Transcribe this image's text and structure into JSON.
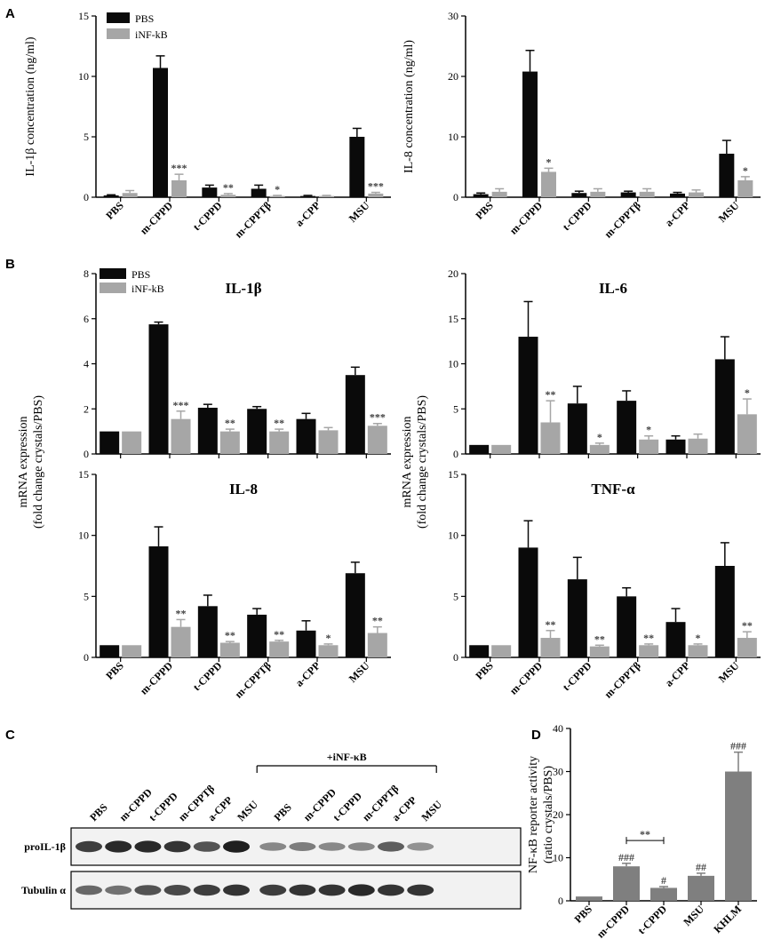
{
  "panels": {
    "A": "A",
    "B": "B",
    "C": "C",
    "D": "D"
  },
  "colors": {
    "pbs": "#0a0a0a",
    "inf": "#a6a6a6",
    "single": "#7f7f7f"
  },
  "legend": {
    "pbs": "PBS",
    "inf": "iNF-kB"
  },
  "chart_data": [
    {
      "id": "A1",
      "type": "bar",
      "title": "",
      "ylabel": "IL-1β concentration (ng/ml)",
      "ylim": [
        0,
        15
      ],
      "yticks": [
        0,
        5,
        10,
        15
      ],
      "categories": [
        "PBS",
        "m-CPPD",
        "t-CPPD",
        "m-CPPTβ",
        "a-CPP",
        "MSU"
      ],
      "series": [
        {
          "name": "PBS",
          "values": [
            0.15,
            10.7,
            0.8,
            0.7,
            0.1,
            5.0
          ],
          "errors": [
            0.05,
            1.0,
            0.2,
            0.3,
            0.05,
            0.7
          ]
        },
        {
          "name": "iNF-kB",
          "values": [
            0.35,
            1.4,
            0.2,
            0.1,
            0.1,
            0.3
          ],
          "errors": [
            0.2,
            0.5,
            0.1,
            0.05,
            0.05,
            0.1
          ]
        }
      ],
      "annotations": [
        "",
        "***",
        "**",
        "*",
        "",
        "***"
      ]
    },
    {
      "id": "A2",
      "type": "bar",
      "title": "",
      "ylabel": "IL-8 concentration (ng/ml)",
      "ylim": [
        0,
        30
      ],
      "yticks": [
        0,
        10,
        20,
        30
      ],
      "categories": [
        "PBS",
        "m-CPPD",
        "t-CPPD",
        "m-CPPTβ",
        "a-CPP",
        "MSU"
      ],
      "series": [
        {
          "name": "PBS",
          "values": [
            0.5,
            20.8,
            0.7,
            0.8,
            0.6,
            7.2
          ],
          "errors": [
            0.2,
            3.5,
            0.3,
            0.2,
            0.2,
            2.2
          ]
        },
        {
          "name": "iNF-kB",
          "values": [
            0.9,
            4.2,
            0.9,
            0.9,
            0.8,
            2.8
          ],
          "errors": [
            0.5,
            0.6,
            0.5,
            0.5,
            0.4,
            0.6
          ]
        }
      ],
      "annotations": [
        "",
        "*",
        "",
        "",
        "",
        "*"
      ]
    },
    {
      "id": "B1",
      "type": "bar",
      "title": "IL-1β",
      "ylabel": "",
      "ylim": [
        0,
        8
      ],
      "yticks": [
        0,
        2,
        4,
        6,
        8
      ],
      "categories": [
        "PBS",
        "m-CPPD",
        "t-CPPD",
        "m-CPPTβ",
        "a-CPP",
        "MSU"
      ],
      "series": [
        {
          "name": "PBS",
          "values": [
            1.0,
            5.75,
            2.05,
            2.0,
            1.55,
            3.5
          ],
          "errors": [
            0.0,
            0.1,
            0.15,
            0.1,
            0.25,
            0.35
          ]
        },
        {
          "name": "iNF-kB",
          "values": [
            1.0,
            1.55,
            1.0,
            1.0,
            1.05,
            1.25
          ],
          "errors": [
            0.0,
            0.35,
            0.1,
            0.1,
            0.12,
            0.1
          ]
        }
      ],
      "annotations": [
        "",
        "***",
        "**",
        "**",
        "",
        "***"
      ]
    },
    {
      "id": "B2",
      "type": "bar",
      "title": "IL-6",
      "ylabel": "",
      "ylim": [
        0,
        20
      ],
      "yticks": [
        0,
        5,
        10,
        15,
        20
      ],
      "categories": [
        "PBS",
        "m-CPPD",
        "t-CPPD",
        "m-CPPTβ",
        "a-CPP",
        "MSU"
      ],
      "series": [
        {
          "name": "PBS",
          "values": [
            1.0,
            13.0,
            5.6,
            5.9,
            1.6,
            10.5
          ],
          "errors": [
            0.0,
            3.9,
            1.9,
            1.1,
            0.4,
            2.5
          ]
        },
        {
          "name": "iNF-kB",
          "values": [
            1.0,
            3.5,
            1.0,
            1.6,
            1.7,
            4.4
          ],
          "errors": [
            0.0,
            2.4,
            0.2,
            0.4,
            0.5,
            1.7
          ]
        }
      ],
      "annotations": [
        "",
        "**",
        "*",
        "*",
        "",
        "*"
      ]
    },
    {
      "id": "B3",
      "type": "bar",
      "title": "IL-8",
      "ylabel": "",
      "ylim": [
        0,
        15
      ],
      "yticks": [
        0,
        5,
        10,
        15
      ],
      "categories": [
        "PBS",
        "m-CPPD",
        "t-CPPD",
        "m-CPPTβ",
        "a-CPP",
        "MSU"
      ],
      "series": [
        {
          "name": "PBS",
          "values": [
            1.0,
            9.1,
            4.2,
            3.5,
            2.2,
            6.9
          ],
          "errors": [
            0.0,
            1.6,
            0.9,
            0.5,
            0.8,
            0.9
          ]
        },
        {
          "name": "iNF-kB",
          "values": [
            1.0,
            2.5,
            1.2,
            1.3,
            1.0,
            2.0
          ],
          "errors": [
            0.0,
            0.6,
            0.1,
            0.1,
            0.1,
            0.5
          ]
        }
      ],
      "annotations": [
        "",
        "**",
        "**",
        "**",
        "*",
        "**"
      ]
    },
    {
      "id": "B4",
      "type": "bar",
      "title": "TNF-α",
      "ylabel": "",
      "ylim": [
        0,
        15
      ],
      "yticks": [
        0,
        5,
        10,
        15
      ],
      "categories": [
        "PBS",
        "m-CPPD",
        "t-CPPD",
        "m-CPPTβ",
        "a-CPP",
        "MSU"
      ],
      "series": [
        {
          "name": "PBS",
          "values": [
            1.0,
            9.0,
            6.4,
            5.0,
            2.9,
            7.5
          ],
          "errors": [
            0.0,
            2.2,
            1.8,
            0.7,
            1.1,
            1.9
          ]
        },
        {
          "name": "iNF-kB",
          "values": [
            1.0,
            1.6,
            0.9,
            1.0,
            1.0,
            1.6
          ],
          "errors": [
            0.0,
            0.6,
            0.1,
            0.1,
            0.1,
            0.5
          ]
        }
      ],
      "annotations": [
        "",
        "**",
        "**",
        "**",
        "*",
        "**"
      ]
    },
    {
      "id": "D",
      "type": "bar",
      "title": "",
      "ylabel": "NF-κB reporter activity",
      "ylabel2": "(ratio crystals/PBS)",
      "ylim": [
        0,
        40
      ],
      "yticks": [
        0,
        10,
        20,
        30,
        40
      ],
      "categories": [
        "PBS",
        "m-CPPD",
        "t-CPPD",
        "MSU",
        "KHLM"
      ],
      "series": [
        {
          "name": "NF-κB",
          "values": [
            1.0,
            8.0,
            3.0,
            5.8,
            30.0
          ],
          "errors": [
            0.0,
            0.7,
            0.3,
            0.6,
            4.5
          ]
        }
      ],
      "annotations": [
        "",
        "###",
        "#",
        "##",
        "###"
      ],
      "bracket": {
        "from": "m-CPPD",
        "to": "t-CPPD",
        "label": "**"
      }
    }
  ],
  "mrna_ylabel": {
    "line1": "mRNA expression",
    "line2": "(fold change crystals/PBS)"
  },
  "blot": {
    "group_label": "+iNF-κB",
    "lanes": [
      "PBS",
      "m-CPPD",
      "t-CPPD",
      "m-CPPTβ",
      "a-CPP",
      "MSU",
      "PBS",
      "m-CPPD",
      "t-CPPD",
      "m-CPPTβ",
      "a-CPP",
      "MSU"
    ],
    "rows": [
      {
        "label": "proIL-1β",
        "intensity": [
          0.8,
          0.9,
          0.9,
          0.85,
          0.7,
          0.95,
          0.45,
          0.5,
          0.45,
          0.45,
          0.65,
          0.4
        ]
      },
      {
        "label": "Tubulin α",
        "intensity": [
          0.6,
          0.55,
          0.7,
          0.75,
          0.8,
          0.85,
          0.8,
          0.85,
          0.85,
          0.9,
          0.85,
          0.85
        ]
      }
    ]
  }
}
